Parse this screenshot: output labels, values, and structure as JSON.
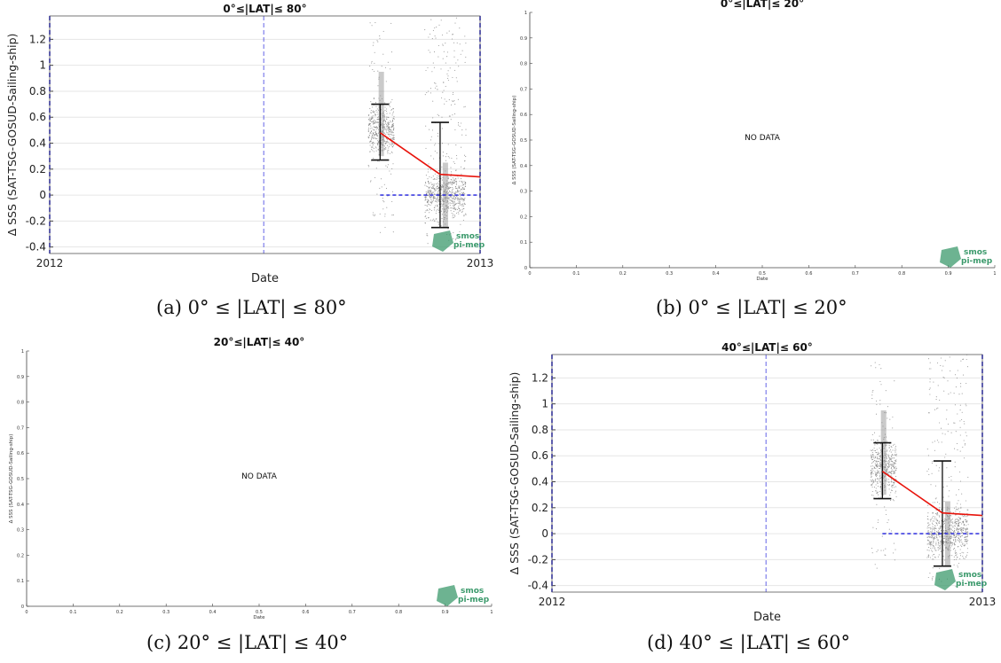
{
  "chart_data": [
    {
      "type": "scatter",
      "title": "0°≤|LAT|≤ 80°",
      "caption": "(a) 0° ≤ |LAT| ≤ 80°",
      "xlabel": "Date",
      "ylabel": "Δ SSS (SAT-TSG-GOSUD-Sailing-ship)",
      "x_ticks": [
        "2012",
        "2013"
      ],
      "xlim": [
        "2012-01-01",
        "2013-01-01"
      ],
      "ylim": [
        -0.45,
        1.38
      ],
      "y_ticks": [
        -0.4,
        -0.2,
        0,
        0.2,
        0.4,
        0.6,
        0.8,
        1,
        1.2
      ],
      "grid": "horizontal",
      "mean_line": {
        "color": "#e8140c",
        "x": [
          "2012-10-08",
          "2012-11-28",
          "2013-01-01"
        ],
        "y": [
          0.48,
          0.16,
          0.14
        ]
      },
      "error_bars": [
        {
          "x": "2012-10-08",
          "low": 0.27,
          "high": 0.7
        },
        {
          "x": "2012-11-28",
          "low": -0.25,
          "high": 0.56
        }
      ],
      "zero_line": {
        "color": "#1a1adc",
        "from": "2012-10-08",
        "to": "2013-01-01",
        "y": 0
      },
      "vertical_markers": [
        "2012-01-01",
        "2012-07-01",
        "2013-01-01"
      ],
      "scatter_clusters": [
        {
          "x_from": "2012-09-28",
          "x_to": "2012-10-20",
          "y_min": -0.3,
          "y_max": 1.35
        },
        {
          "x_from": "2012-11-15",
          "x_to": "2012-12-20",
          "y_min": -0.42,
          "y_max": 1.38
        }
      ],
      "logo": {
        "line1": "smos",
        "line2": "pi-mep",
        "color": "#3c9a6c"
      }
    },
    {
      "type": "scatter",
      "title": "0°≤|LAT|≤ 20°",
      "caption": "(b) 0° ≤ |LAT| ≤ 20°",
      "xlabel": "Date",
      "ylabel": "Δ SSS (SAT-TSG-GOSUD-Sailing-ship)",
      "message": "NO DATA",
      "xlim": [
        0,
        1
      ],
      "ylim": [
        0,
        1
      ],
      "x_ticks": [
        "0",
        "0.1",
        "0.2",
        "0.3",
        "0.4",
        "0.5",
        "0.6",
        "0.7",
        "0.8",
        "0.9",
        "1"
      ],
      "y_ticks": [
        "0",
        "0.1",
        "0.2",
        "0.3",
        "0.4",
        "0.5",
        "0.6",
        "0.7",
        "0.8",
        "0.9",
        "1"
      ],
      "logo": {
        "line1": "smos",
        "line2": "pi-mep",
        "color": "#3c9a6c"
      }
    },
    {
      "type": "scatter",
      "title": "20°≤|LAT|≤ 40°",
      "caption": "(c) 20° ≤ |LAT| ≤ 40°",
      "xlabel": "Date",
      "ylabel": "Δ SSS (SAT-TSG-GOSUD-Sailing-ship)",
      "message": "NO DATA",
      "xlim": [
        0,
        1
      ],
      "ylim": [
        0,
        1
      ],
      "x_ticks": [
        "0",
        "0.1",
        "0.2",
        "0.3",
        "0.4",
        "0.5",
        "0.6",
        "0.7",
        "0.8",
        "0.9",
        "1"
      ],
      "y_ticks": [
        "0",
        "0.1",
        "0.2",
        "0.3",
        "0.4",
        "0.5",
        "0.6",
        "0.7",
        "0.8",
        "0.9",
        "1"
      ],
      "logo": {
        "line1": "smos",
        "line2": "pi-mep",
        "color": "#3c9a6c"
      }
    },
    {
      "type": "scatter",
      "title": "40°≤|LAT|≤ 60°",
      "caption": "(d) 40° ≤ |LAT| ≤ 60°",
      "xlabel": "Date",
      "ylabel": "Δ SSS (SAT-TSG-GOSUD-Sailing-ship)",
      "x_ticks": [
        "2012",
        "2013"
      ],
      "xlim": [
        "2012-01-01",
        "2013-01-01"
      ],
      "ylim": [
        -0.45,
        1.38
      ],
      "y_ticks": [
        -0.4,
        -0.2,
        0,
        0.2,
        0.4,
        0.6,
        0.8,
        1,
        1.2
      ],
      "grid": "horizontal",
      "mean_line": {
        "color": "#e8140c",
        "x": [
          "2012-10-08",
          "2012-11-28",
          "2013-01-01"
        ],
        "y": [
          0.48,
          0.16,
          0.14
        ]
      },
      "error_bars": [
        {
          "x": "2012-10-08",
          "low": 0.27,
          "high": 0.7
        },
        {
          "x": "2012-11-28",
          "low": -0.25,
          "high": 0.56
        }
      ],
      "zero_line": {
        "color": "#1a1adc",
        "from": "2012-10-08",
        "to": "2013-01-01",
        "y": 0
      },
      "vertical_markers": [
        "2012-01-01",
        "2012-07-01",
        "2013-01-01"
      ],
      "scatter_clusters": [
        {
          "x_from": "2012-09-28",
          "x_to": "2012-10-20",
          "y_min": -0.3,
          "y_max": 1.35
        },
        {
          "x_from": "2012-11-15",
          "x_to": "2012-12-20",
          "y_min": -0.42,
          "y_max": 1.38
        }
      ],
      "logo": {
        "line1": "smos",
        "line2": "pi-mep",
        "color": "#3c9a6c"
      }
    }
  ]
}
